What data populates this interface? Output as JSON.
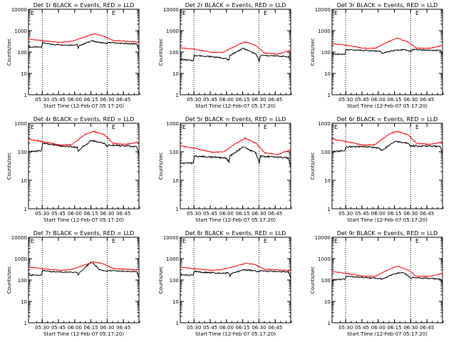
{
  "colors": {
    "events": "#000000",
    "lld": "#ff0000",
    "background": "#ffffff",
    "dotted_marker": "#000000"
  },
  "shared": {
    "ylabel": "Counts/sec",
    "xlabel": "Start Time (12-Feb-07 05:17:20)",
    "x_ticks": [
      "05:30",
      "05:45",
      "06:00",
      "06:15",
      "06:30",
      "06:45"
    ],
    "y_ticks_small": [
      "1",
      "10",
      "100",
      "1000"
    ],
    "y_ticks_large": [
      "1",
      "10",
      "100",
      "1000",
      "10000"
    ],
    "marker_label": "E"
  },
  "chart_data": [
    {
      "type": "line",
      "title": "Det 1r BLACK = Events, RED = LLD",
      "ylim": [
        1,
        10000
      ],
      "yscale": "log",
      "x_unit": "minutes after 05:17:20",
      "xlim": [
        0,
        102
      ],
      "markers_x": [
        "05:30",
        "06:30"
      ],
      "series": [
        {
          "name": "BLACK = Events",
          "points": [
            [
              0,
              170
            ],
            [
              12,
              170
            ],
            [
              13,
              280
            ],
            [
              20,
              230
            ],
            [
              38,
              210
            ],
            [
              45,
              220
            ],
            [
              46,
              150
            ],
            [
              47,
              200
            ],
            [
              58,
              330
            ],
            [
              66,
              280
            ],
            [
              73,
              250
            ],
            [
              74,
              280
            ],
            [
              88,
              250
            ],
            [
              100,
              240
            ],
            [
              102,
              120
            ]
          ]
        },
        {
          "name": "RED = LLD",
          "points": [
            [
              0,
              400
            ],
            [
              15,
              330
            ],
            [
              30,
              280
            ],
            [
              40,
              320
            ],
            [
              52,
              500
            ],
            [
              60,
              700
            ],
            [
              68,
              600
            ],
            [
              78,
              350
            ],
            [
              90,
              320
            ],
            [
              102,
              280
            ]
          ]
        }
      ]
    },
    {
      "type": "line",
      "title": "Det 2r BLACK = Events, RED = LLD",
      "ylim": [
        1,
        10000
      ],
      "yscale": "log",
      "x_unit": "minutes after 05:17:20",
      "xlim": [
        0,
        102
      ],
      "markers_x": [
        "05:30",
        "06:30"
      ],
      "series": [
        {
          "name": "BLACK = Events",
          "points": [
            [
              0,
              45
            ],
            [
              12,
              40
            ],
            [
              13,
              70
            ],
            [
              30,
              60
            ],
            [
              42,
              50
            ],
            [
              45,
              40
            ],
            [
              46,
              70
            ],
            [
              58,
              150
            ],
            [
              70,
              80
            ],
            [
              73,
              35
            ],
            [
              74,
              70
            ],
            [
              90,
              65
            ],
            [
              100,
              60
            ],
            [
              102,
              40
            ]
          ]
        },
        {
          "name": "RED = LLD",
          "points": [
            [
              0,
              160
            ],
            [
              15,
              130
            ],
            [
              30,
              95
            ],
            [
              40,
              100
            ],
            [
              52,
              200
            ],
            [
              60,
              300
            ],
            [
              70,
              200
            ],
            [
              78,
              90
            ],
            [
              90,
              80
            ],
            [
              102,
              120
            ]
          ]
        }
      ]
    },
    {
      "type": "line",
      "title": "Det 3r BLACK = Events, RED = LLD",
      "ylim": [
        1,
        10000
      ],
      "yscale": "log",
      "x_unit": "minutes after 05:17:20",
      "xlim": [
        0,
        102
      ],
      "markers_x": [
        "05:30",
        "06:30"
      ],
      "series": [
        {
          "name": "BLACK = Events",
          "points": [
            [
              0,
              80
            ],
            [
              12,
              80
            ],
            [
              13,
              130
            ],
            [
              30,
              120
            ],
            [
              42,
              110
            ],
            [
              45,
              105
            ],
            [
              46,
              90
            ],
            [
              58,
              120
            ],
            [
              66,
              130
            ],
            [
              73,
              110
            ],
            [
              74,
              130
            ],
            [
              90,
              120
            ],
            [
              100,
              120
            ],
            [
              102,
              80
            ]
          ]
        },
        {
          "name": "RED = LLD",
          "points": [
            [
              0,
              250
            ],
            [
              15,
              200
            ],
            [
              30,
              150
            ],
            [
              40,
              150
            ],
            [
              52,
              300
            ],
            [
              60,
              450
            ],
            [
              70,
              300
            ],
            [
              78,
              150
            ],
            [
              90,
              150
            ],
            [
              102,
              200
            ]
          ]
        }
      ]
    },
    {
      "type": "line",
      "title": "Det 4r BLACK = Events, RED = LLD",
      "ylim": [
        1,
        1000
      ],
      "yscale": "log",
      "x_unit": "minutes after 05:17:20",
      "xlim": [
        0,
        102
      ],
      "markers_x": [
        "05:30",
        "06:30"
      ],
      "series": [
        {
          "name": "BLACK = Events",
          "points": [
            [
              0,
              100
            ],
            [
              12,
              110
            ],
            [
              13,
              200
            ],
            [
              30,
              160
            ],
            [
              42,
              150
            ],
            [
              45,
              140
            ],
            [
              46,
              110
            ],
            [
              58,
              250
            ],
            [
              70,
              200
            ],
            [
              73,
              150
            ],
            [
              74,
              170
            ],
            [
              90,
              160
            ],
            [
              100,
              150
            ],
            [
              102,
              80
            ]
          ]
        },
        {
          "name": "RED = LLD",
          "points": [
            [
              0,
              280
            ],
            [
              15,
              220
            ],
            [
              30,
              170
            ],
            [
              40,
              180
            ],
            [
              52,
              400
            ],
            [
              60,
              520
            ],
            [
              70,
              400
            ],
            [
              78,
              200
            ],
            [
              90,
              180
            ],
            [
              102,
              220
            ]
          ]
        }
      ]
    },
    {
      "type": "line",
      "title": "Det 5r BLACK = Events, RED = LLD",
      "ylim": [
        1,
        1000
      ],
      "yscale": "log",
      "x_unit": "minutes after 05:17:20",
      "xlim": [
        0,
        102
      ],
      "markers_x": [
        "05:30",
        "06:30"
      ],
      "series": [
        {
          "name": "BLACK = Events",
          "points": [
            [
              0,
              40
            ],
            [
              12,
              40
            ],
            [
              13,
              70
            ],
            [
              30,
              65
            ],
            [
              42,
              60
            ],
            [
              45,
              45
            ],
            [
              46,
              70
            ],
            [
              58,
              150
            ],
            [
              70,
              90
            ],
            [
              73,
              40
            ],
            [
              74,
              70
            ],
            [
              90,
              65
            ],
            [
              100,
              60
            ],
            [
              102,
              30
            ]
          ]
        },
        {
          "name": "RED = LLD",
          "points": [
            [
              0,
              160
            ],
            [
              15,
              130
            ],
            [
              30,
              95
            ],
            [
              40,
              100
            ],
            [
              52,
              200
            ],
            [
              60,
              300
            ],
            [
              70,
              200
            ],
            [
              78,
              90
            ],
            [
              90,
              80
            ],
            [
              102,
              120
            ]
          ]
        }
      ]
    },
    {
      "type": "line",
      "title": "Det 6r BLACK = Events, RED = LLD",
      "ylim": [
        1,
        1000
      ],
      "yscale": "log",
      "x_unit": "minutes after 05:17:20",
      "xlim": [
        0,
        102
      ],
      "markers_x": [
        "05:30",
        "06:30"
      ],
      "series": [
        {
          "name": "BLACK = Events",
          "points": [
            [
              0,
              100
            ],
            [
              12,
              110
            ],
            [
              13,
              150
            ],
            [
              30,
              150
            ],
            [
              42,
              140
            ],
            [
              45,
              120
            ],
            [
              46,
              110
            ],
            [
              58,
              230
            ],
            [
              70,
              200
            ],
            [
              73,
              150
            ],
            [
              74,
              160
            ],
            [
              90,
              160
            ],
            [
              100,
              150
            ],
            [
              102,
              90
            ]
          ]
        },
        {
          "name": "RED = LLD",
          "points": [
            [
              0,
              280
            ],
            [
              15,
              220
            ],
            [
              30,
              170
            ],
            [
              40,
              180
            ],
            [
              52,
              400
            ],
            [
              60,
              520
            ],
            [
              70,
              400
            ],
            [
              78,
              200
            ],
            [
              90,
              180
            ],
            [
              102,
              220
            ]
          ]
        }
      ]
    },
    {
      "type": "line",
      "title": "Det 7r BLACK = Events, RED = LLD",
      "ylim": [
        1,
        10000
      ],
      "yscale": "log",
      "x_unit": "minutes after 05:17:20",
      "xlim": [
        0,
        102
      ],
      "markers_x": [
        "05:30",
        "06:30"
      ],
      "series": [
        {
          "name": "BLACK = Events",
          "points": [
            [
              0,
              170
            ],
            [
              12,
              170
            ],
            [
              13,
              280
            ],
            [
              20,
              250
            ],
            [
              38,
              230
            ],
            [
              45,
              230
            ],
            [
              46,
              170
            ],
            [
              47,
              220
            ],
            [
              58,
              700
            ],
            [
              66,
              300
            ],
            [
              73,
              250
            ],
            [
              74,
              280
            ],
            [
              88,
              260
            ],
            [
              100,
              250
            ],
            [
              102,
              120
            ]
          ]
        },
        {
          "name": "RED = LLD",
          "points": [
            [
              0,
              400
            ],
            [
              15,
              330
            ],
            [
              30,
              280
            ],
            [
              40,
              320
            ],
            [
              52,
              500
            ],
            [
              60,
              700
            ],
            [
              68,
              600
            ],
            [
              78,
              350
            ],
            [
              90,
              320
            ],
            [
              102,
              300
            ]
          ]
        }
      ]
    },
    {
      "type": "line",
      "title": "Det 8r BLACK = Events, RED = LLD",
      "ylim": [
        1,
        10000
      ],
      "yscale": "log",
      "x_unit": "minutes after 05:17:20",
      "xlim": [
        0,
        102
      ],
      "markers_x": [
        "05:30",
        "06:30"
      ],
      "series": [
        {
          "name": "BLACK = Events",
          "points": [
            [
              0,
              170
            ],
            [
              12,
              170
            ],
            [
              13,
              260
            ],
            [
              20,
              230
            ],
            [
              38,
              210
            ],
            [
              45,
              220
            ],
            [
              46,
              150
            ],
            [
              47,
              200
            ],
            [
              58,
              300
            ],
            [
              66,
              280
            ],
            [
              73,
              240
            ],
            [
              74,
              270
            ],
            [
              88,
              250
            ],
            [
              100,
              240
            ],
            [
              102,
              120
            ]
          ]
        },
        {
          "name": "RED = LLD",
          "points": [
            [
              0,
              400
            ],
            [
              15,
              330
            ],
            [
              30,
              280
            ],
            [
              40,
              320
            ],
            [
              52,
              450
            ],
            [
              60,
              600
            ],
            [
              68,
              550
            ],
            [
              78,
              320
            ],
            [
              90,
              300
            ],
            [
              102,
              280
            ]
          ]
        }
      ]
    },
    {
      "type": "line",
      "title": "Det 9r BLACK = Events, RED = LLD",
      "ylim": [
        1,
        10000
      ],
      "yscale": "log",
      "x_unit": "minutes after 05:17:20",
      "xlim": [
        0,
        102
      ],
      "markers_x": [
        "05:30",
        "06:30"
      ],
      "series": [
        {
          "name": "BLACK = Events",
          "points": [
            [
              0,
              100
            ],
            [
              12,
              110
            ],
            [
              13,
              150
            ],
            [
              30,
              130
            ],
            [
              42,
              120
            ],
            [
              45,
              115
            ],
            [
              46,
              110
            ],
            [
              58,
              200
            ],
            [
              66,
              230
            ],
            [
              73,
              120
            ],
            [
              74,
              130
            ],
            [
              90,
              120
            ],
            [
              100,
              110
            ],
            [
              102,
              70
            ]
          ]
        },
        {
          "name": "RED = LLD",
          "points": [
            [
              0,
              250
            ],
            [
              15,
              200
            ],
            [
              30,
              150
            ],
            [
              40,
              150
            ],
            [
              52,
              300
            ],
            [
              60,
              450
            ],
            [
              70,
              300
            ],
            [
              78,
              150
            ],
            [
              90,
              150
            ],
            [
              102,
              200
            ]
          ]
        }
      ]
    }
  ]
}
